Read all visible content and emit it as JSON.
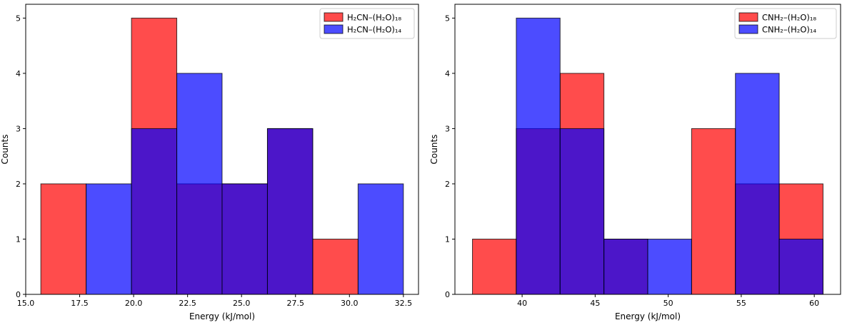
{
  "colors": {
    "series_a": "#ff0000",
    "series_b": "#0000ff",
    "overlap": "#4f14c8"
  },
  "chart_data": [
    {
      "type": "bar",
      "subtype": "overlaid-histogram",
      "title": "",
      "xlabel": "Energy (kJ/mol)",
      "ylabel": "Counts",
      "xlim": [
        15.0,
        33.2
      ],
      "ylim": [
        0,
        5.25
      ],
      "xticks": [
        15.0,
        17.5,
        20.0,
        22.5,
        25.0,
        27.5,
        30.0,
        32.5
      ],
      "xtick_labels": [
        "15.0",
        "17.5",
        "20.0",
        "22.5",
        "25.0",
        "27.5",
        "30.0",
        "32.5"
      ],
      "yticks": [
        0,
        1,
        2,
        3,
        4,
        5
      ],
      "ytick_labels": [
        "0",
        "1",
        "2",
        "3",
        "4",
        "5"
      ],
      "legend_position": "top-right",
      "bin_edges": [
        15.7,
        17.8,
        19.9,
        22.0,
        24.1,
        26.2,
        28.3,
        30.4,
        32.5
      ],
      "series": [
        {
          "name": "H₂CN–(H₂O)₁₈",
          "color": "red",
          "counts": [
            2,
            0,
            5,
            2,
            2,
            3,
            1,
            0
          ]
        },
        {
          "name": "H₂CN–(H₂O)₁₄",
          "color": "blue",
          "counts": [
            0,
            2,
            3,
            4,
            2,
            3,
            0,
            2
          ]
        }
      ]
    },
    {
      "type": "bar",
      "subtype": "overlaid-histogram",
      "title": "",
      "xlabel": "Energy (kJ/mol)",
      "ylabel": "Counts",
      "xlim": [
        35.4,
        61.8
      ],
      "ylim": [
        0,
        5.25
      ],
      "xticks": [
        40,
        45,
        50,
        55,
        60
      ],
      "xtick_labels": [
        "40",
        "45",
        "50",
        "55",
        "60"
      ],
      "yticks": [
        0,
        1,
        2,
        3,
        4,
        5
      ],
      "ytick_labels": [
        "0",
        "1",
        "2",
        "3",
        "4",
        "5"
      ],
      "legend_position": "top-right",
      "bin_edges": [
        36.6,
        39.6,
        42.6,
        45.6,
        48.6,
        51.6,
        54.6,
        57.6,
        60.6
      ],
      "series": [
        {
          "name": "CNH₂–(H₂O)₁₈",
          "color": "red",
          "counts": [
            1,
            3,
            4,
            1,
            0,
            3,
            2,
            2
          ]
        },
        {
          "name": "CNH₂–(H₂O)₁₄",
          "color": "blue",
          "counts": [
            0,
            5,
            3,
            1,
            1,
            0,
            4,
            1
          ]
        }
      ]
    }
  ]
}
